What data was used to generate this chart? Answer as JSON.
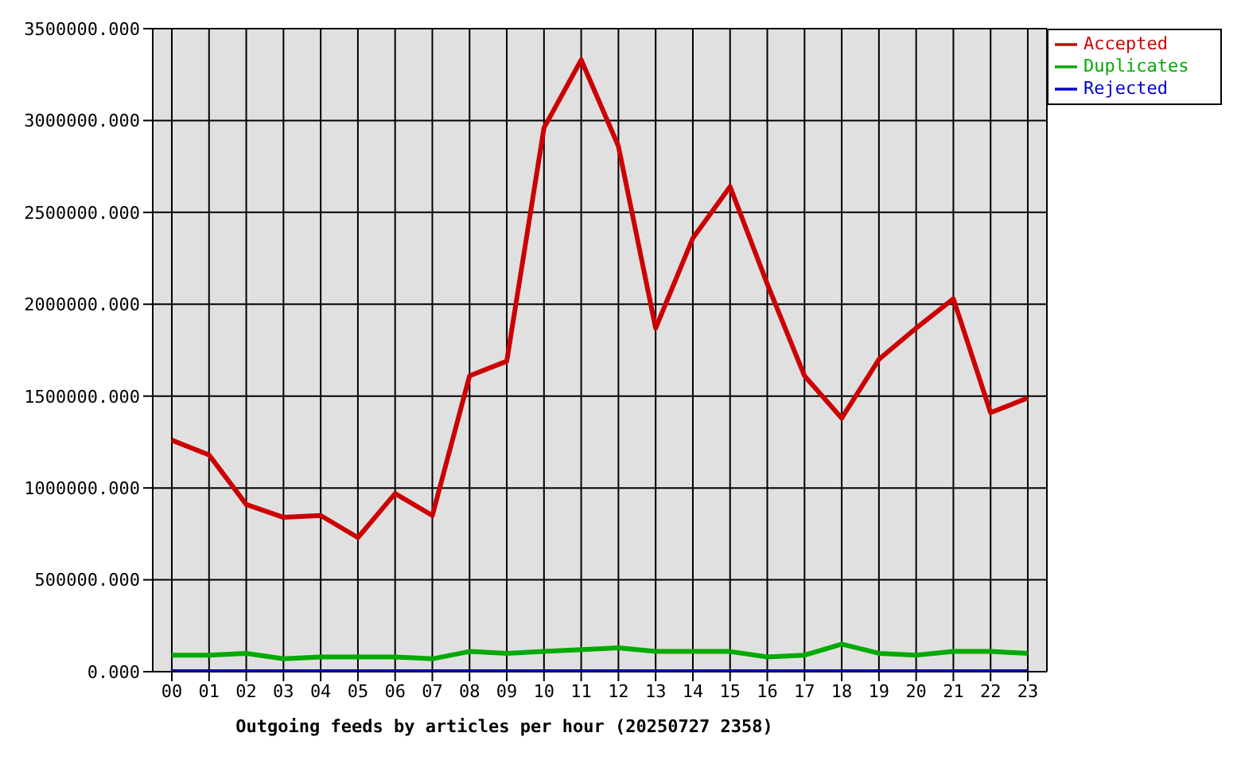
{
  "chart_data": {
    "type": "line",
    "xlabel": "Outgoing feeds by articles per hour (20250727 2358)",
    "categories": [
      "00",
      "01",
      "02",
      "03",
      "04",
      "05",
      "06",
      "07",
      "08",
      "09",
      "10",
      "11",
      "12",
      "13",
      "14",
      "15",
      "16",
      "17",
      "18",
      "19",
      "20",
      "21",
      "22",
      "23"
    ],
    "series": [
      {
        "name": "Accepted",
        "color": "#cc0000",
        "values": [
          1260000,
          1180000,
          910000,
          840000,
          850000,
          730000,
          970000,
          850000,
          1610000,
          1690000,
          2960000,
          3330000,
          2860000,
          1870000,
          2360000,
          2640000,
          2110000,
          1610000,
          1380000,
          1700000,
          1870000,
          2030000,
          1410000,
          1490000
        ]
      },
      {
        "name": "Duplicates",
        "color": "#00aa00",
        "values": [
          90000,
          90000,
          100000,
          70000,
          80000,
          80000,
          80000,
          70000,
          110000,
          100000,
          110000,
          120000,
          130000,
          110000,
          110000,
          110000,
          80000,
          90000,
          150000,
          100000,
          90000,
          110000,
          110000,
          100000
        ]
      },
      {
        "name": "Rejected",
        "color": "#0000cc",
        "values": [
          0,
          0,
          0,
          0,
          0,
          0,
          0,
          0,
          0,
          0,
          0,
          0,
          0,
          0,
          0,
          0,
          0,
          0,
          0,
          0,
          0,
          0,
          0,
          0
        ]
      }
    ],
    "ylim": [
      0,
      3500000
    ],
    "yticks": [
      {
        "value": 0,
        "label": "0.000"
      },
      {
        "value": 500000,
        "label": "500000.000"
      },
      {
        "value": 1000000,
        "label": "1000000.000"
      },
      {
        "value": 1500000,
        "label": "1500000.000"
      },
      {
        "value": 2000000,
        "label": "2000000.000"
      },
      {
        "value": 2500000,
        "label": "2500000.000"
      },
      {
        "value": 3000000,
        "label": "3000000.000"
      },
      {
        "value": 3500000,
        "label": "3500000.000"
      }
    ],
    "grid": true,
    "legend": "right",
    "marker": "none",
    "line_style": "solid"
  }
}
